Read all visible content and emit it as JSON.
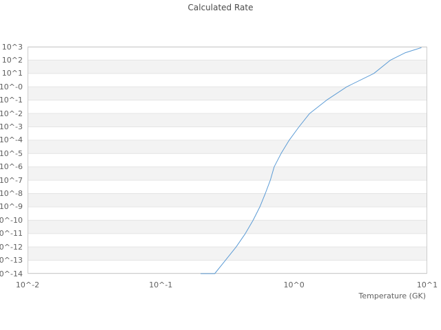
{
  "title": "Calculated Rate",
  "colors": {
    "line": "#5b9bd5",
    "band": "#f3f3f3",
    "grid": "#e4e4e4",
    "border": "#cdcdcd",
    "tick_text": "#5f5f5f",
    "title_text": "#4a4a4a",
    "background": "#ffffff"
  },
  "y_axis": {
    "tick_labels": [
      "10^3",
      "10^2",
      "10^1",
      "10^-0",
      "10^-1",
      "10^-2",
      "10^-3",
      "10^-4",
      "10^-5",
      "10^-6",
      "10^-7",
      "10^-8",
      "10^-9",
      "10^-10",
      "10^-11",
      "10^-12",
      "10^-13",
      "10^-14"
    ]
  },
  "x_axis": {
    "title": "Temperature (GK)",
    "tick_labels": [
      "10^-2",
      "10^-1",
      "10^0",
      "10^1"
    ]
  },
  "chart_data": {
    "type": "line",
    "title": "Calculated Rate",
    "xlabel": "Temperature (GK)",
    "ylabel": "",
    "xscale": "log",
    "yscale": "log",
    "xlim": [
      0.01,
      10
    ],
    "ylim": [
      1e-14,
      1000
    ],
    "grid": "alternating-horizontal-bands-per-decade",
    "legend": "none",
    "series": [
      {
        "name": "calculated_rate",
        "color": "#5b9bd5",
        "x_label": "Temperature (GK)",
        "points": [
          [
            0.2,
            2e-17
          ],
          [
            0.254,
            1e-14
          ],
          [
            0.306,
            1e-13
          ],
          [
            0.368,
            1e-12
          ],
          [
            0.431,
            1e-11
          ],
          [
            0.493,
            1e-10
          ],
          [
            0.554,
            1e-09
          ],
          [
            0.609,
            1e-08
          ],
          [
            0.664,
            1e-07
          ],
          [
            0.71,
            1e-06
          ],
          [
            0.8,
            1e-05
          ],
          [
            0.92,
            0.0001
          ],
          [
            1.09,
            0.001
          ],
          [
            1.31,
            0.01
          ],
          [
            1.76,
            0.1
          ],
          [
            2.49,
            1.0
          ],
          [
            3.98,
            10
          ],
          [
            5.3,
            100
          ],
          [
            6.8,
            350
          ],
          [
            9.0,
            850
          ]
        ]
      }
    ]
  }
}
